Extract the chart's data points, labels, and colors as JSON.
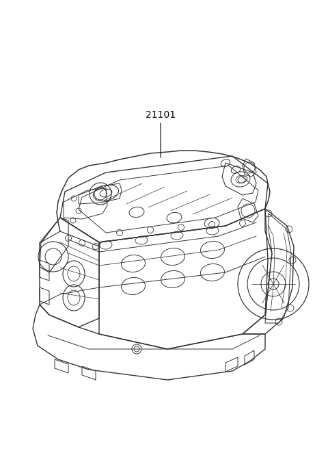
{
  "background_color": "#ffffff",
  "label_text": "21101",
  "line_color": "#333333",
  "label_fontsize": 10,
  "figsize": [
    4.8,
    6.56
  ],
  "dpi": 100,
  "engine_image_b64": ""
}
